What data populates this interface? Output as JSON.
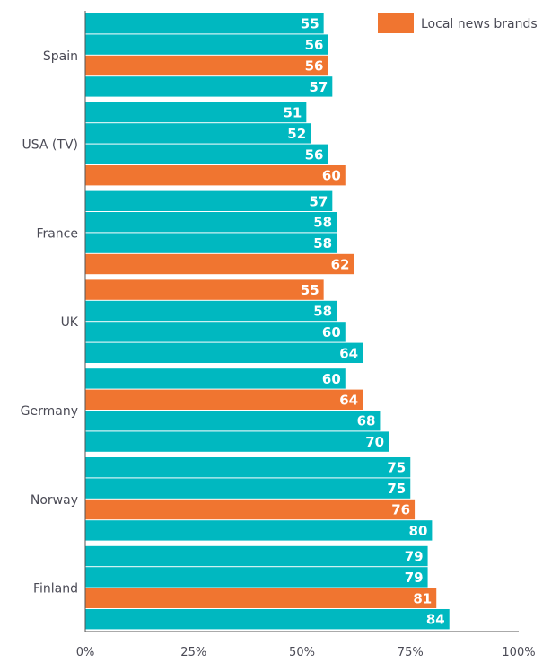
{
  "chart_data": {
    "type": "bar",
    "orientation": "horizontal",
    "title": "",
    "xlabel": "",
    "ylabel": "",
    "xlim": [
      0,
      100
    ],
    "x_ticks": [
      "0%",
      "25%",
      "50%",
      "75%",
      "100%"
    ],
    "grid": false,
    "legend": {
      "placement": "top-right",
      "entries": [
        {
          "name": "Local news brands",
          "color": "#F07530"
        }
      ]
    },
    "colors": {
      "default": "#00B8C0",
      "highlight": "#F07530"
    },
    "groups": [
      {
        "label": "Spain",
        "values": [
          55,
          56,
          56,
          57
        ],
        "highlight_index": 2
      },
      {
        "label": "USA (TV)",
        "values": [
          51,
          52,
          56,
          60
        ],
        "highlight_index": 3
      },
      {
        "label": "France",
        "values": [
          57,
          58,
          58,
          62
        ],
        "highlight_index": 3
      },
      {
        "label": "UK",
        "values": [
          55,
          58,
          60,
          64
        ],
        "highlight_index": 0
      },
      {
        "label": "Germany",
        "values": [
          60,
          64,
          68,
          70
        ],
        "highlight_index": 1
      },
      {
        "label": "Norway",
        "values": [
          75,
          75,
          76,
          80
        ],
        "highlight_index": 2
      },
      {
        "label": "Finland",
        "values": [
          79,
          79,
          81,
          84
        ],
        "highlight_index": 2
      }
    ]
  }
}
